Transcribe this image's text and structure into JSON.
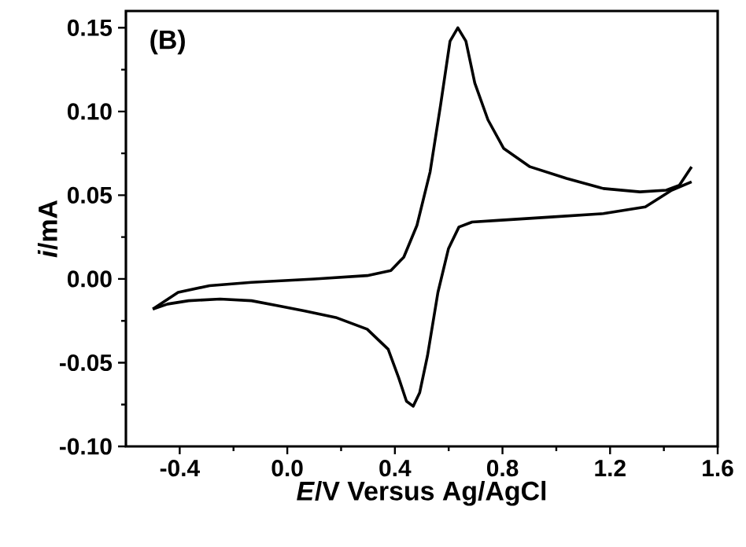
{
  "chart_data": {
    "type": "line",
    "xlabel": "*E*/V Versus Ag/AgCl",
    "ylabel": "*i*/mA",
    "annotations": [
      "(B)"
    ],
    "series": [
      {
        "color": "#000000",
        "x": [
          -0.5,
          -0.406,
          -0.289,
          -0.133,
          0.1,
          0.297,
          0.385,
          0.433,
          0.482,
          0.531,
          0.57,
          0.605,
          0.634,
          0.664,
          0.697,
          0.746,
          0.804,
          0.902,
          1.038,
          1.175,
          1.311,
          1.409,
          1.458,
          1.503
        ],
        "values": [
          -0.018,
          -0.008,
          -0.004,
          -0.002,
          0.0,
          0.002,
          0.005,
          0.013,
          0.032,
          0.064,
          0.104,
          0.142,
          0.15,
          0.142,
          0.117,
          0.095,
          0.078,
          0.067,
          0.06,
          0.054,
          0.052,
          0.053,
          0.056,
          0.067
        ]
      },
      {
        "color": "#000000",
        "x": [
          1.503,
          1.429,
          1.331,
          1.175,
          0.98,
          0.785,
          0.687,
          0.638,
          0.599,
          0.56,
          0.521,
          0.492,
          0.468,
          0.443,
          0.414,
          0.375,
          0.297,
          0.18,
          0.0625,
          -0.035,
          -0.133,
          -0.25,
          -0.367,
          -0.445,
          -0.5
        ],
        "values": [
          0.058,
          0.053,
          0.043,
          0.039,
          0.037,
          0.035,
          0.034,
          0.031,
          0.018,
          -0.008,
          -0.046,
          -0.068,
          -0.076,
          -0.073,
          -0.059,
          -0.042,
          -0.03,
          -0.023,
          -0.019,
          -0.016,
          -0.013,
          -0.012,
          -0.013,
          -0.015,
          -0.018
        ]
      }
    ],
    "xlim": [
      -0.6,
      1.6
    ],
    "ylim": [
      -0.1,
      0.16
    ],
    "xticks": [
      -0.4,
      {
        "value": 0,
        "label": "0.0"
      },
      0.4,
      0.8,
      1.2,
      1.6
    ],
    "yticks": [
      {
        "value": -0.1,
        "label": "-0.10"
      },
      -0.05,
      {
        "value": 0,
        "label": "0.00"
      },
      0.05,
      {
        "value": 0.1,
        "label": "0.10"
      },
      0.15
    ],
    "grid": false,
    "marker": "none",
    "line_style": "solid"
  }
}
